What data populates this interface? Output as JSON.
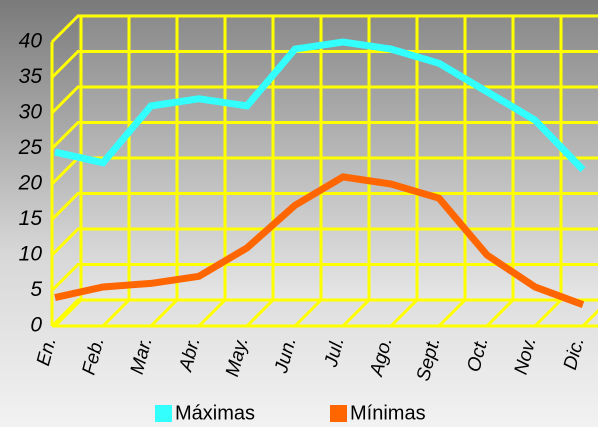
{
  "chart_data": {
    "type": "line",
    "categories": [
      "En.",
      "Feb.",
      "Mar.",
      "Abr.",
      "May.",
      "Jun.",
      "Jul.",
      "Ago.",
      "Sept.",
      "Oct.",
      "Nov.",
      "Dic."
    ],
    "series": [
      {
        "name": "Máximas",
        "color": "#33ffff",
        "values": [
          24.5,
          23,
          31,
          32,
          31,
          39,
          40,
          39,
          37,
          33,
          29,
          22
        ]
      },
      {
        "name": "Mínimas",
        "color": "#ff6600",
        "values": [
          4,
          5.5,
          6,
          7,
          11,
          17,
          21,
          20,
          18,
          10,
          5.5,
          3
        ]
      }
    ],
    "ylim": [
      0,
      40
    ],
    "yticks": [
      0,
      5,
      10,
      15,
      20,
      25,
      30,
      35,
      40
    ],
    "grid": true,
    "grid_color": "#ffff00"
  }
}
